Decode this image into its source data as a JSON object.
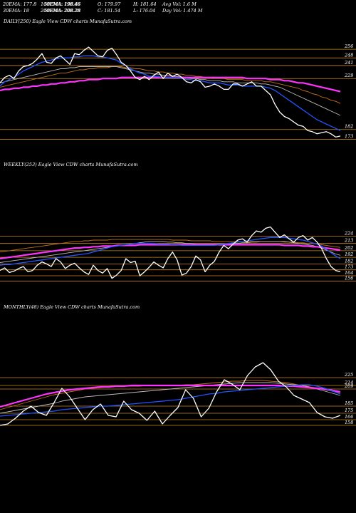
{
  "header": {
    "row1": [
      {
        "key": "ema20",
        "text": "20EMA: 177.8"
      },
      {
        "key": "ema100",
        "text": "100EMA: 198.46"
      },
      {
        "key": "open",
        "text": "O: 179.97"
      },
      {
        "key": "high",
        "text": "H: 181.64"
      },
      {
        "key": "avgvol",
        "text": "Avg Vol: 1.6  M"
      }
    ],
    "row2": [
      {
        "key": "ema30",
        "text": "30EMA: 18"
      },
      {
        "key": "ema200",
        "text": "200EMA: 208.28"
      },
      {
        "key": "close",
        "text": "C: 181.54"
      },
      {
        "key": "low",
        "text": "L: 176.04"
      },
      {
        "key": "dayvol",
        "text": "Day Vol: 1.474  M"
      }
    ],
    "overlay1": "50EMA: 198.46",
    "overlay2": "50EMA: 208.28"
  },
  "colors": {
    "price": "#ffffff",
    "ema_short": "#2255ff",
    "ema_gray": "#bbbbbb",
    "ema_long": "#ff33ff",
    "ema_brown": "#c0701a",
    "level_line": "#c8861e"
  },
  "chart_data": [
    {
      "type": "line",
      "title": "DAILY(250) Eagle  View  CDW charts MunafaSutra.com",
      "y_ticks": [
        256,
        248,
        241,
        229,
        182,
        173
      ],
      "ylim": [
        170,
        262
      ],
      "series": [
        {
          "role": "price",
          "values": [
            225,
            230,
            232,
            229,
            236,
            240,
            241,
            243,
            247,
            252,
            244,
            243,
            248,
            250,
            246,
            242,
            252,
            251,
            255,
            258,
            254,
            250,
            249,
            255,
            257,
            251,
            244,
            241,
            236,
            230,
            228,
            231,
            228,
            232,
            235,
            229,
            234,
            231,
            233,
            230,
            226,
            225,
            228,
            226,
            221,
            222,
            224,
            222,
            219,
            219,
            224,
            224,
            222,
            224,
            226,
            222,
            222,
            218,
            214,
            205,
            198,
            194,
            192,
            189,
            186,
            185,
            181,
            180,
            178,
            179,
            180,
            178,
            175,
            176
          ]
        },
        {
          "role": "ema_short",
          "values": [
            222,
            226,
            228,
            230,
            233,
            236,
            238,
            240,
            242,
            244,
            245,
            246,
            247,
            248,
            248,
            248,
            249,
            249,
            250,
            250,
            250,
            249,
            249,
            248,
            247,
            246,
            243,
            241,
            238,
            236,
            234,
            233,
            231,
            231,
            231,
            230,
            230,
            230,
            230,
            229,
            228,
            228,
            227,
            227,
            226,
            225,
            225,
            225,
            224,
            223,
            223,
            223,
            222,
            222,
            222,
            222,
            222,
            221,
            220,
            218,
            215,
            212,
            209,
            206,
            203,
            200,
            197,
            194,
            191,
            189,
            187,
            185,
            183,
            181
          ]
        },
        {
          "role": "ema_gray",
          "values": [
            225,
            226,
            227,
            228,
            229,
            230,
            231,
            232,
            233,
            234,
            235,
            236,
            237,
            238,
            238,
            239,
            239,
            240,
            240,
            240,
            240,
            240,
            240,
            240,
            240,
            240,
            239,
            238,
            237,
            236,
            235,
            234,
            234,
            233,
            233,
            232,
            232,
            231,
            231,
            230,
            230,
            229,
            229,
            228,
            228,
            227,
            227,
            227,
            226,
            226,
            226,
            225,
            225,
            225,
            225,
            225,
            224,
            224,
            223,
            222,
            221,
            219,
            217,
            215,
            213,
            211,
            209,
            207,
            205,
            203,
            201,
            199,
            197,
            195
          ]
        },
        {
          "role": "ema_brown",
          "values": [
            221,
            222,
            223,
            224,
            225,
            226,
            227,
            228,
            229,
            230,
            231,
            232,
            233,
            234,
            234,
            235,
            236,
            237,
            237,
            238,
            238,
            239,
            239,
            239,
            240,
            240,
            240,
            239,
            239,
            238,
            238,
            237,
            236,
            236,
            235,
            235,
            234,
            234,
            233,
            233,
            232,
            232,
            231,
            231,
            230,
            230,
            229,
            229,
            229,
            228,
            228,
            228,
            228,
            227,
            227,
            227,
            227,
            226,
            226,
            225,
            224,
            223,
            222,
            221,
            220,
            218,
            217,
            215,
            214,
            212,
            211,
            209,
            208,
            206
          ]
        },
        {
          "role": "ema_long",
          "values": [
            218,
            219,
            219,
            220,
            220,
            221,
            221,
            222,
            222,
            223,
            223,
            224,
            224,
            225,
            225,
            226,
            226,
            227,
            227,
            228,
            228,
            228,
            229,
            229,
            229,
            229,
            230,
            230,
            230,
            230,
            230,
            230,
            230,
            230,
            230,
            230,
            230,
            230,
            230,
            230,
            230,
            230,
            230,
            230,
            230,
            230,
            230,
            230,
            230,
            230,
            230,
            230,
            230,
            229,
            229,
            229,
            229,
            229,
            228,
            228,
            228,
            227,
            227,
            226,
            225,
            225,
            224,
            223,
            222,
            221,
            220,
            219,
            218,
            217
          ]
        }
      ]
    },
    {
      "type": "line",
      "title": "WEEKLY(253) Eagle  View  CDW charts MunafaSutra.com",
      "y_ticks": [
        224,
        213,
        202,
        192,
        182,
        173,
        164,
        156
      ],
      "ylim": [
        150,
        258
      ],
      "series": [
        {
          "role": "price",
          "values": [
            172,
            176,
            169,
            171,
            175,
            178,
            170,
            172,
            180,
            185,
            182,
            178,
            190,
            185,
            175,
            180,
            183,
            176,
            170,
            166,
            180,
            172,
            168,
            175,
            160,
            165,
            172,
            190,
            184,
            186,
            164,
            170,
            177,
            185,
            180,
            176,
            190,
            200,
            188,
            165,
            168,
            178,
            194,
            188,
            170,
            180,
            186,
            200,
            210,
            205,
            212,
            218,
            220,
            215,
            225,
            232,
            230,
            236,
            238,
            230,
            222,
            226,
            220,
            215,
            222,
            225,
            218,
            222,
            215,
            205,
            190,
            178,
            172,
            170
          ]
        },
        {
          "role": "ema_short",
          "values": [
            180,
            181,
            181,
            182,
            183,
            184,
            185,
            186,
            187,
            188,
            189,
            190,
            191,
            192,
            193,
            194,
            195,
            196,
            197,
            198,
            200,
            202,
            204,
            206,
            208,
            209,
            210,
            211,
            212,
            213,
            213,
            213,
            213,
            213,
            212,
            212,
            212,
            211,
            211,
            210,
            210,
            210,
            210,
            210,
            210,
            210,
            210,
            211,
            212,
            213,
            214,
            215,
            216,
            217,
            218,
            219,
            220,
            221,
            222,
            222,
            222,
            222,
            221,
            220,
            219,
            218,
            216,
            214,
            212,
            209,
            204,
            199,
            194,
            190
          ]
        },
        {
          "role": "ema_gray",
          "values": [
            184,
            185,
            186,
            187,
            188,
            189,
            190,
            191,
            192,
            193,
            194,
            195,
            196,
            197,
            198,
            199,
            200,
            201,
            202,
            203,
            204,
            205,
            206,
            207,
            208,
            209,
            210,
            211,
            212,
            213,
            214,
            215,
            216,
            216,
            216,
            216,
            215,
            215,
            214,
            214,
            213,
            213,
            212,
            212,
            212,
            212,
            212,
            212,
            212,
            212,
            213,
            213,
            214,
            214,
            215,
            215,
            216,
            216,
            216,
            216,
            216,
            216,
            215,
            214,
            213,
            212,
            211,
            210,
            208,
            206,
            203,
            200,
            197,
            195
          ]
        },
        {
          "role": "ema_brown",
          "values": [
            200,
            201,
            202,
            203,
            204,
            205,
            206,
            207,
            208,
            209,
            210,
            211,
            212,
            213,
            214,
            215,
            216,
            216,
            217,
            217,
            218,
            218,
            218,
            218,
            219,
            219,
            219,
            219,
            219,
            219,
            219,
            219,
            219,
            219,
            219,
            219,
            219,
            218,
            218,
            218,
            218,
            217,
            217,
            217,
            217,
            217,
            216,
            216,
            216,
            216,
            216,
            216,
            216,
            216,
            216,
            216,
            216,
            216,
            216,
            216,
            216,
            215,
            215,
            215,
            214,
            214,
            213,
            213,
            212,
            211,
            210,
            209,
            208,
            207
          ]
        },
        {
          "role": "ema_long",
          "values": [
            190,
            191,
            192,
            193,
            194,
            195,
            196,
            197,
            198,
            199,
            200,
            201,
            202,
            203,
            204,
            205,
            206,
            206,
            207,
            207,
            208,
            208,
            209,
            209,
            209,
            210,
            210,
            210,
            210,
            210,
            211,
            211,
            211,
            211,
            211,
            211,
            211,
            211,
            211,
            211,
            211,
            211,
            211,
            211,
            211,
            211,
            211,
            211,
            211,
            211,
            211,
            211,
            211,
            211,
            211,
            211,
            211,
            211,
            211,
            211,
            211,
            210,
            210,
            210,
            210,
            209,
            209,
            208,
            208,
            207,
            206,
            205,
            204,
            203
          ]
        }
      ]
    },
    {
      "type": "line",
      "title": "MONTHLY(48) Eagle  View  CDW charts MunafaSutra.com",
      "y_ticks": [
        225,
        214,
        209,
        185,
        175,
        166,
        158
      ],
      "ylim": [
        150,
        255
      ],
      "series": [
        {
          "role": "price",
          "values": [
            158,
            160,
            168,
            178,
            185,
            176,
            172,
            190,
            210,
            198,
            182,
            166,
            180,
            188,
            172,
            170,
            192,
            180,
            175,
            165,
            178,
            160,
            172,
            183,
            208,
            196,
            170,
            182,
            205,
            222,
            216,
            208,
            228,
            240,
            246,
            236,
            220,
            212,
            200,
            195,
            190,
            176,
            170,
            168,
            172
          ]
        },
        {
          "role": "ema_short",
          "values": [
            171,
            172,
            173,
            174,
            175,
            176,
            177,
            178,
            180,
            181,
            182,
            183,
            184,
            185,
            185,
            186,
            187,
            188,
            189,
            190,
            191,
            192,
            193,
            194,
            196,
            198,
            200,
            202,
            203,
            205,
            206,
            207,
            208,
            209,
            210,
            211,
            212,
            213,
            214,
            215,
            215,
            213,
            210,
            206,
            202
          ]
        },
        {
          "role": "ema_gray",
          "values": [
            175,
            177,
            179,
            181,
            183,
            185,
            187,
            189,
            192,
            194,
            196,
            198,
            199,
            200,
            201,
            202,
            203,
            204,
            205,
            206,
            207,
            208,
            209,
            210,
            211,
            212,
            213,
            214,
            215,
            216,
            217,
            218,
            218,
            218,
            218,
            218,
            217,
            216,
            215,
            214,
            212,
            209,
            206,
            203,
            200
          ]
        },
        {
          "role": "ema_brown",
          "values": [
            180,
            183,
            186,
            189,
            192,
            195,
            198,
            201,
            203,
            205,
            207,
            209,
            210,
            211,
            212,
            213,
            213,
            213,
            213,
            214,
            214,
            214,
            214,
            214,
            215,
            215,
            216,
            217,
            218,
            219,
            220,
            220,
            221,
            221,
            221,
            220,
            219,
            218,
            216,
            214,
            212,
            210,
            208,
            206,
            204
          ]
        },
        {
          "role": "ema_long",
          "values": [
            184,
            187,
            190,
            193,
            196,
            199,
            202,
            204,
            206,
            208,
            209,
            210,
            211,
            212,
            212,
            213,
            213,
            214,
            214,
            214,
            214,
            214,
            214,
            214,
            214,
            214,
            214,
            214,
            214,
            214,
            214,
            214,
            214,
            214,
            214,
            214,
            214,
            213,
            213,
            212,
            211,
            210,
            209,
            207,
            205
          ]
        }
      ]
    }
  ]
}
